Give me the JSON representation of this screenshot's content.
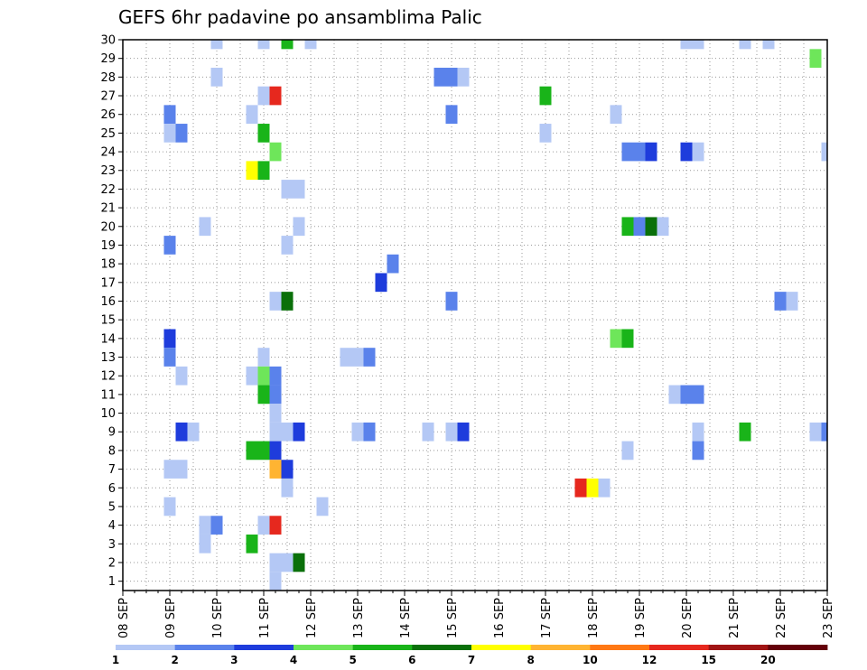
{
  "chart_data": {
    "type": "heatmap",
    "title": "GEFS 6hr padavine po ansamblima Palic",
    "x": {
      "ticks": [
        "08 SEP",
        "09 SEP",
        "10 SEP",
        "11 SEP",
        "12 SEP",
        "13 SEP",
        "14 SEP",
        "15 SEP",
        "16 SEP",
        "17 SEP",
        "18 SEP",
        "19 SEP",
        "20 SEP",
        "21 SEP",
        "22 SEP",
        "23 SEP"
      ],
      "range": [
        "08 SEP 00Z",
        "23 SEP 00Z"
      ],
      "step": "6hr",
      "minor_grid_step": "12hr"
    },
    "y": {
      "ticks": [
        1,
        2,
        3,
        4,
        5,
        6,
        7,
        8,
        9,
        10,
        11,
        12,
        13,
        14,
        15,
        16,
        17,
        18,
        19,
        20,
        21,
        22,
        23,
        24,
        25,
        26,
        27,
        28,
        29,
        30
      ],
      "range": [
        1,
        30
      ]
    },
    "grid": "dotted",
    "legend": {
      "placement": "bottom",
      "levels": [
        1,
        2,
        3,
        4,
        5,
        6,
        7,
        8,
        10,
        12,
        15,
        20
      ],
      "colors": [
        "#b4c8f5",
        "#5a82eb",
        "#1e3cdc",
        "#6ee65a",
        "#19b419",
        "#0a700a",
        "#ffff00",
        "#ffb432",
        "#ff7814",
        "#e6281e",
        "#a01414",
        "#64000a"
      ]
    },
    "cells": [
      {
        "m": 30,
        "t": 8,
        "c": 0
      },
      {
        "m": 30,
        "t": 12,
        "c": 0
      },
      {
        "m": 30,
        "t": 14,
        "c": 4
      },
      {
        "m": 30,
        "t": 16,
        "c": 0
      },
      {
        "m": 30,
        "t": 48,
        "c": 0
      },
      {
        "m": 30,
        "t": 49,
        "c": 0
      },
      {
        "m": 30,
        "t": 53,
        "c": 0
      },
      {
        "m": 30,
        "t": 55,
        "c": 0
      },
      {
        "m": 29,
        "t": 59,
        "c": 3
      },
      {
        "m": 28,
        "t": 8,
        "c": 0
      },
      {
        "m": 28,
        "t": 27,
        "c": 1
      },
      {
        "m": 28,
        "t": 28,
        "c": 1
      },
      {
        "m": 28,
        "t": 29,
        "c": 0
      },
      {
        "m": 27,
        "t": 12,
        "c": 0
      },
      {
        "m": 27,
        "t": 13,
        "c": 9
      },
      {
        "m": 27,
        "t": 36,
        "c": 4
      },
      {
        "m": 26,
        "t": 4,
        "c": 1
      },
      {
        "m": 26,
        "t": 11,
        "c": 0
      },
      {
        "m": 26,
        "t": 28,
        "c": 1
      },
      {
        "m": 26,
        "t": 42,
        "c": 0
      },
      {
        "m": 25,
        "t": 4,
        "c": 0
      },
      {
        "m": 25,
        "t": 5,
        "c": 1
      },
      {
        "m": 25,
        "t": 12,
        "c": 4
      },
      {
        "m": 25,
        "t": 36,
        "c": 0
      },
      {
        "m": 24,
        "t": 13,
        "c": 3
      },
      {
        "m": 24,
        "t": 43,
        "c": 1
      },
      {
        "m": 24,
        "t": 44,
        "c": 1
      },
      {
        "m": 24,
        "t": 45,
        "c": 2
      },
      {
        "m": 24,
        "t": 48,
        "c": 2
      },
      {
        "m": 24,
        "t": 49,
        "c": 0
      },
      {
        "m": 24,
        "t": 60,
        "c": 0
      },
      {
        "m": 23,
        "t": 11,
        "c": 6
      },
      {
        "m": 23,
        "t": 12,
        "c": 4
      },
      {
        "m": 22,
        "t": 14,
        "c": 0
      },
      {
        "m": 22,
        "t": 15,
        "c": 0
      },
      {
        "m": 20,
        "t": 7,
        "c": 0
      },
      {
        "m": 20,
        "t": 15,
        "c": 0
      },
      {
        "m": 20,
        "t": 43,
        "c": 4
      },
      {
        "m": 20,
        "t": 44,
        "c": 1
      },
      {
        "m": 20,
        "t": 45,
        "c": 5
      },
      {
        "m": 20,
        "t": 46,
        "c": 0
      },
      {
        "m": 19,
        "t": 4,
        "c": 1
      },
      {
        "m": 19,
        "t": 14,
        "c": 0
      },
      {
        "m": 18,
        "t": 23,
        "c": 1
      },
      {
        "m": 17,
        "t": 22,
        "c": 2
      },
      {
        "m": 16,
        "t": 13,
        "c": 0
      },
      {
        "m": 16,
        "t": 14,
        "c": 5
      },
      {
        "m": 16,
        "t": 28,
        "c": 1
      },
      {
        "m": 16,
        "t": 56,
        "c": 1
      },
      {
        "m": 16,
        "t": 57,
        "c": 0
      },
      {
        "m": 14,
        "t": 4,
        "c": 2
      },
      {
        "m": 14,
        "t": 42,
        "c": 3
      },
      {
        "m": 14,
        "t": 43,
        "c": 4
      },
      {
        "m": 13,
        "t": 4,
        "c": 1
      },
      {
        "m": 13,
        "t": 12,
        "c": 0
      },
      {
        "m": 13,
        "t": 19,
        "c": 0
      },
      {
        "m": 13,
        "t": 20,
        "c": 0
      },
      {
        "m": 13,
        "t": 21,
        "c": 1
      },
      {
        "m": 12,
        "t": 5,
        "c": 0
      },
      {
        "m": 12,
        "t": 11,
        "c": 0
      },
      {
        "m": 12,
        "t": 12,
        "c": 3
      },
      {
        "m": 12,
        "t": 13,
        "c": 1
      },
      {
        "m": 11,
        "t": 12,
        "c": 4
      },
      {
        "m": 11,
        "t": 13,
        "c": 1
      },
      {
        "m": 11,
        "t": 47,
        "c": 0
      },
      {
        "m": 11,
        "t": 48,
        "c": 1
      },
      {
        "m": 11,
        "t": 49,
        "c": 1
      },
      {
        "m": 10,
        "t": 13,
        "c": 0
      },
      {
        "m": 9,
        "t": 5,
        "c": 2
      },
      {
        "m": 9,
        "t": 6,
        "c": 0
      },
      {
        "m": 9,
        "t": 13,
        "c": 0
      },
      {
        "m": 9,
        "t": 14,
        "c": 0
      },
      {
        "m": 9,
        "t": 15,
        "c": 2
      },
      {
        "m": 9,
        "t": 20,
        "c": 0
      },
      {
        "m": 9,
        "t": 21,
        "c": 1
      },
      {
        "m": 9,
        "t": 26,
        "c": 0
      },
      {
        "m": 9,
        "t": 28,
        "c": 0
      },
      {
        "m": 9,
        "t": 29,
        "c": 2
      },
      {
        "m": 9,
        "t": 49,
        "c": 0
      },
      {
        "m": 9,
        "t": 53,
        "c": 4
      },
      {
        "m": 9,
        "t": 59,
        "c": 0
      },
      {
        "m": 9,
        "t": 60,
        "c": 1
      },
      {
        "m": 8,
        "t": 11,
        "c": 4
      },
      {
        "m": 8,
        "t": 12,
        "c": 4
      },
      {
        "m": 8,
        "t": 13,
        "c": 2
      },
      {
        "m": 8,
        "t": 43,
        "c": 0
      },
      {
        "m": 8,
        "t": 49,
        "c": 1
      },
      {
        "m": 7,
        "t": 4,
        "c": 0
      },
      {
        "m": 7,
        "t": 5,
        "c": 0
      },
      {
        "m": 7,
        "t": 13,
        "c": 7
      },
      {
        "m": 7,
        "t": 14,
        "c": 2
      },
      {
        "m": 6,
        "t": 14,
        "c": 0
      },
      {
        "m": 6,
        "t": 39,
        "c": 9
      },
      {
        "m": 6,
        "t": 40,
        "c": 6
      },
      {
        "m": 6,
        "t": 41,
        "c": 0
      },
      {
        "m": 5,
        "t": 4,
        "c": 0
      },
      {
        "m": 5,
        "t": 17,
        "c": 0
      },
      {
        "m": 4,
        "t": 7,
        "c": 0
      },
      {
        "m": 4,
        "t": 8,
        "c": 1
      },
      {
        "m": 4,
        "t": 12,
        "c": 0
      },
      {
        "m": 4,
        "t": 13,
        "c": 9
      },
      {
        "m": 3,
        "t": 7,
        "c": 0
      },
      {
        "m": 3,
        "t": 11,
        "c": 4
      },
      {
        "m": 2,
        "t": 13,
        "c": 0
      },
      {
        "m": 2,
        "t": 14,
        "c": 0
      },
      {
        "m": 2,
        "t": 15,
        "c": 5
      },
      {
        "m": 1,
        "t": 13,
        "c": 0
      }
    ]
  }
}
